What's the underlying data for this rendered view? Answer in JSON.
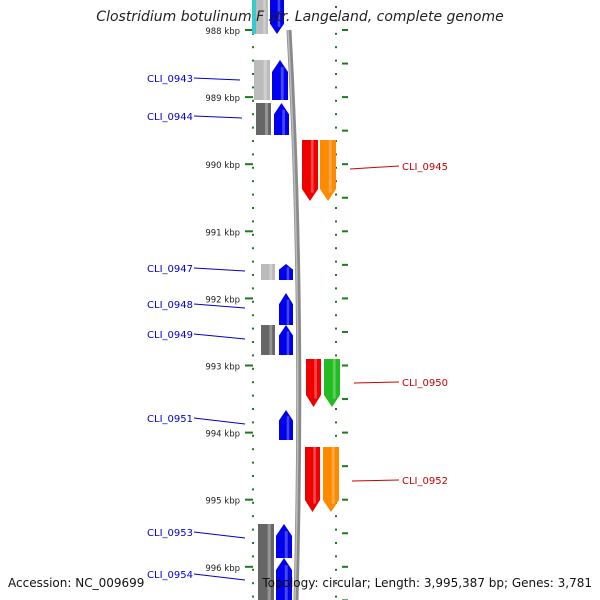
{
  "title": "Clostridium botulinum F str. Langeland, complete genome",
  "accession": "Accession: NC_009699",
  "topology": "Topology: circular; Length: 3,995,387 bp; Genes: 3,781",
  "colors": {
    "axis_ticks": "#1f7a1f",
    "backbone": "#8a8a8a",
    "left_label": "#0000cc",
    "right_label": "#cc0000",
    "gene_blue": "#0000ee",
    "gene_red": "#ee0000",
    "gene_orange": "#ff8a00",
    "gene_green": "#22bb22",
    "gene_gray": "#666666",
    "gene_lightgray": "#bbbbbb",
    "gene_cyan": "#33cccc"
  },
  "kbp_labels": [
    {
      "label": "988 kbp",
      "kbp": 988
    },
    {
      "label": "989 kbp",
      "kbp": 989
    },
    {
      "label": "990 kbp",
      "kbp": 990
    },
    {
      "label": "991 kbp",
      "kbp": 991
    },
    {
      "label": "992 kbp",
      "kbp": 992
    },
    {
      "label": "993 kbp",
      "kbp": 993
    },
    {
      "label": "994 kbp",
      "kbp": 994
    },
    {
      "label": "995 kbp",
      "kbp": 995
    },
    {
      "label": "996 kbp",
      "kbp": 996
    }
  ],
  "genes_left": [
    {
      "label": "CLI_0943"
    },
    {
      "label": "CLI_0944"
    },
    {
      "label": "CLI_0947"
    },
    {
      "label": "CLI_0948"
    },
    {
      "label": "CLI_0949"
    },
    {
      "label": "CLI_0951"
    },
    {
      "label": "CLI_0953"
    },
    {
      "label": "CLI_0954"
    }
  ],
  "genes_right": [
    {
      "label": "CLI_0945"
    },
    {
      "label": "CLI_0950"
    },
    {
      "label": "CLI_0952"
    }
  ]
}
